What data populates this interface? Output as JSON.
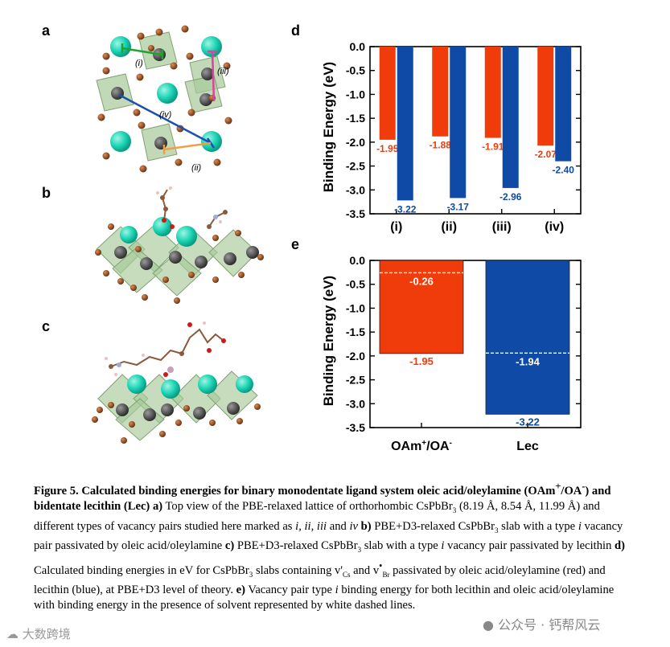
{
  "panels": {
    "a": "a",
    "b": "b",
    "c": "c",
    "d": "d",
    "e": "e"
  },
  "structure_labels": {
    "i": "(i)",
    "ii": "(ii)",
    "iii": "(iii)",
    "iv": "(iv)"
  },
  "chart_data": [
    {
      "type": "bar",
      "panel": "d",
      "ylabel": "Binding Energy (eV)",
      "categories": [
        "(i)",
        "(ii)",
        "(iii)",
        "(iv)"
      ],
      "ylim": [
        -3.5,
        0.0
      ],
      "yticks": [
        "0.0",
        "-0.5",
        "-1.0",
        "-1.5",
        "-2.0",
        "-2.5",
        "-3.0",
        "-3.5"
      ],
      "series": [
        {
          "values": [
            -1.95,
            -1.88,
            -1.91,
            -2.07
          ],
          "labels": [
            "-1.95",
            "-1.88",
            "-1.91",
            "-2.07"
          ],
          "color": "#f03c0a"
        },
        {
          "values": [
            -3.22,
            -3.17,
            -2.96,
            -2.4
          ],
          "labels": [
            "-3.22",
            "-3.17",
            "-2.96",
            "-2.40"
          ],
          "color": "#0e4aa6"
        }
      ]
    },
    {
      "type": "bar",
      "panel": "e",
      "ylabel": "Binding Energy (eV)",
      "categories": [
        "OAm+/OA-",
        "Lec"
      ],
      "ylim": [
        -3.5,
        0.0
      ],
      "yticks": [
        "0.0",
        "-0.5",
        "-1.0",
        "-1.5",
        "-2.0",
        "-2.5",
        "-3.0",
        "-3.5"
      ],
      "bars": [
        {
          "value": -1.95,
          "label": "-1.95",
          "color": "#f03c0a",
          "solvent_value": -0.26,
          "solvent_label": "-0.26"
        },
        {
          "value": -3.22,
          "label": "-3.22",
          "color": "#0e4aa6",
          "solvent_value": -1.94,
          "solvent_label": "-1.94"
        }
      ]
    }
  ],
  "caption": {
    "title": "Figure 5. Calculated binding energies for binary monodentate ligand system oleic acid/oleylamine (OAm",
    "title_sup1": "+",
    "title_mid": "/OA",
    "title_sup2": "-",
    "title_end": ") and bidentate lecithin (Lec)",
    "a_label": "a)",
    "a_text1": "Top view of the PBE-relaxed lattice of orthorhombic CsPbBr",
    "a_sub": "3",
    "a_text2": "(8.19 Å, 8.54 Å, 11.99 Å) and different types of vacancy pairs studied here marked as",
    "a_types": "i, ii, iii",
    "a_and": "and",
    "a_iv": "iv",
    "b_label": "b)",
    "b_text1": "PBE+D3-relaxed CsPbBr",
    "b_sub": "3",
    "b_text2": "slab with a type",
    "b_i": "i",
    "b_text3": "vacancy pair passivated by oleic acid/oleylamine",
    "c_label": "c)",
    "c_text1": "PBE+D3-relaxed CsPbBr",
    "c_sub": "3",
    "c_text2": "slab with a type",
    "c_i": "i",
    "c_text3": "vacancy pair passivated by lecithin",
    "d_label": "d)",
    "d_text1": "Calculated binding energies in eV for CsPbBr",
    "d_sub": "3",
    "d_text2": "slabs containing v'",
    "d_sub_cs": "Cs",
    "d_text3": "and v",
    "d_sup": "•",
    "d_sub_br": "Br",
    "d_text4": "passivated by oleic acid/oleylamine (red) and lecithin (blue), at PBE+D3 level of theory.",
    "e_label": "e)",
    "e_text1": "Vacancy pair type",
    "e_i": "i",
    "e_text2": "binding energy for both lecithin and oleic acid/oleylamine with binding energy in the presence of solvent represented by white dashed lines."
  },
  "watermarks": {
    "left": "大数跨境",
    "right": "公众号 · 钙帮风云"
  }
}
